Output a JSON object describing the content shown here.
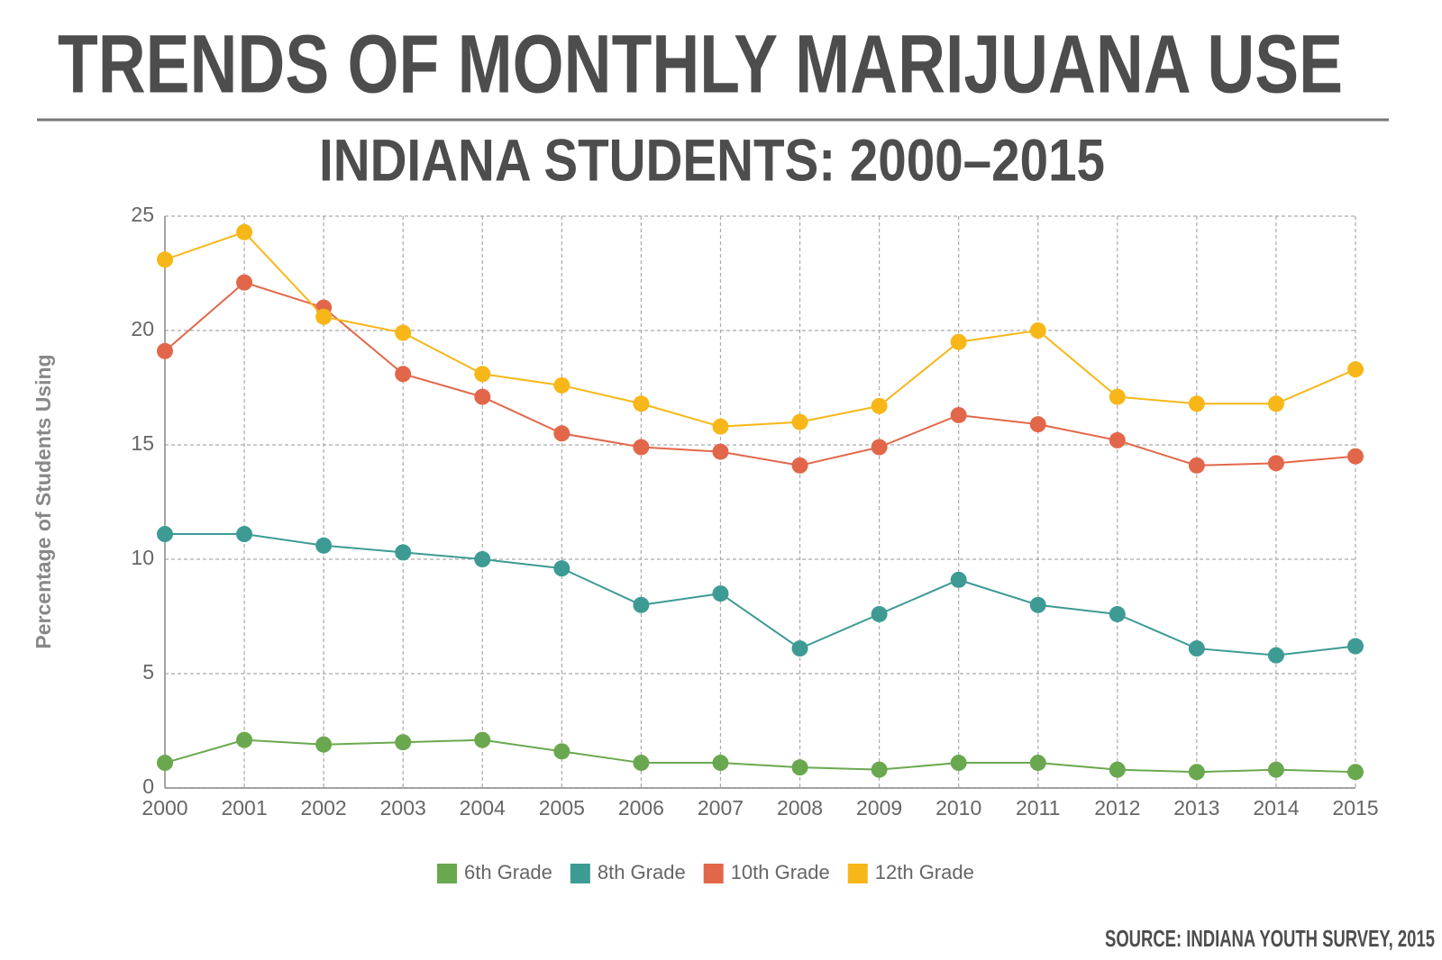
{
  "chart_data": {
    "type": "line",
    "title": "TRENDS OF MONTHLY MARIJUANA USE",
    "subtitle": "INDIANA STUDENTS: 2000–2015",
    "source": "SOURCE: INDIANA YOUTH SURVEY, 2015",
    "y_label": "Percentage of Students Using",
    "x": [
      2000,
      2001,
      2002,
      2003,
      2004,
      2005,
      2006,
      2007,
      2008,
      2009,
      2010,
      2011,
      2012,
      2013,
      2014,
      2015
    ],
    "xlim": [
      2000,
      2015
    ],
    "xticks": [
      2000,
      2001,
      2002,
      2003,
      2004,
      2005,
      2006,
      2007,
      2008,
      2009,
      2010,
      2011,
      2012,
      2013,
      2014,
      2015
    ],
    "ylim": [
      0,
      25
    ],
    "yticks": [
      0,
      5,
      10,
      15,
      20,
      25
    ],
    "grid": true,
    "legend": "bottom",
    "series": [
      {
        "name": "6th Grade",
        "color": "#6aa84f",
        "values": [
          1.1,
          2.1,
          1.9,
          2.0,
          2.1,
          1.6,
          1.1,
          1.1,
          0.9,
          0.8,
          1.1,
          1.1,
          0.8,
          0.7,
          0.8,
          0.7
        ]
      },
      {
        "name": "8th Grade",
        "color": "#3d9b94",
        "values": [
          11.1,
          11.1,
          10.6,
          10.3,
          10.0,
          9.6,
          8.0,
          8.5,
          6.1,
          7.6,
          9.1,
          8.0,
          7.6,
          6.1,
          5.8,
          6.2
        ]
      },
      {
        "name": "10th Grade",
        "color": "#e2674a",
        "values": [
          19.1,
          22.1,
          21.0,
          18.1,
          17.1,
          15.5,
          14.9,
          14.7,
          14.1,
          14.9,
          16.3,
          15.9,
          15.2,
          14.1,
          14.2,
          14.5
        ]
      },
      {
        "name": "12th Grade",
        "color": "#f7b718",
        "values": [
          23.1,
          24.3,
          20.6,
          19.9,
          18.1,
          17.6,
          16.8,
          15.8,
          16.0,
          16.7,
          19.5,
          20.0,
          17.1,
          16.8,
          16.8,
          18.3
        ]
      }
    ]
  }
}
